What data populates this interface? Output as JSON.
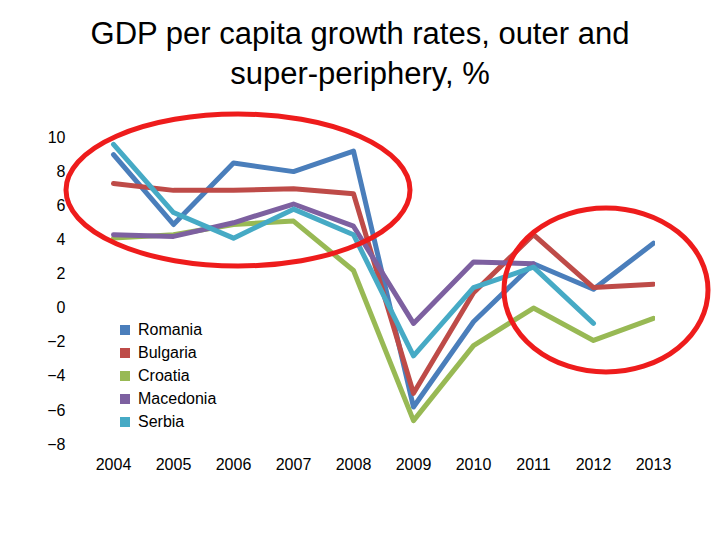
{
  "chart_data": {
    "type": "line",
    "title": "GDP per capita growth rates, outer and super-periphery, %",
    "categories": [
      "2004",
      "2005",
      "2006",
      "2007",
      "2008",
      "2009",
      "2010",
      "2011",
      "2012",
      "2013"
    ],
    "series": [
      {
        "name": "Romania",
        "color": "#4a7ebb",
        "values": [
          9.0,
          4.9,
          8.5,
          8.0,
          9.2,
          -5.8,
          -0.8,
          2.6,
          1.1,
          3.8
        ]
      },
      {
        "name": "Bulgaria",
        "color": "#be4b48",
        "values": [
          7.3,
          6.9,
          6.9,
          7.0,
          6.7,
          -5.0,
          0.9,
          4.3,
          1.2,
          1.4
        ]
      },
      {
        "name": "Croatia",
        "color": "#98b954",
        "values": [
          4.1,
          4.3,
          4.9,
          5.1,
          2.2,
          -6.6,
          -2.2,
          0.0,
          -1.9,
          -0.6
        ]
      },
      {
        "name": "Macedonia",
        "color": "#7d60a0",
        "values": [
          4.3,
          4.2,
          5.0,
          6.1,
          4.8,
          -0.9,
          2.7,
          2.6,
          null,
          null
        ]
      },
      {
        "name": "Serbia",
        "color": "#46aac5",
        "values": [
          9.6,
          5.6,
          4.1,
          5.8,
          4.3,
          -2.8,
          1.2,
          2.4,
          -0.9,
          null
        ]
      }
    ],
    "ylim": [
      -8,
      10
    ],
    "yticks": [
      -8,
      -6,
      -4,
      -2,
      0,
      2,
      4,
      6,
      8,
      10
    ],
    "grid": false,
    "legend": "bottom-left"
  }
}
